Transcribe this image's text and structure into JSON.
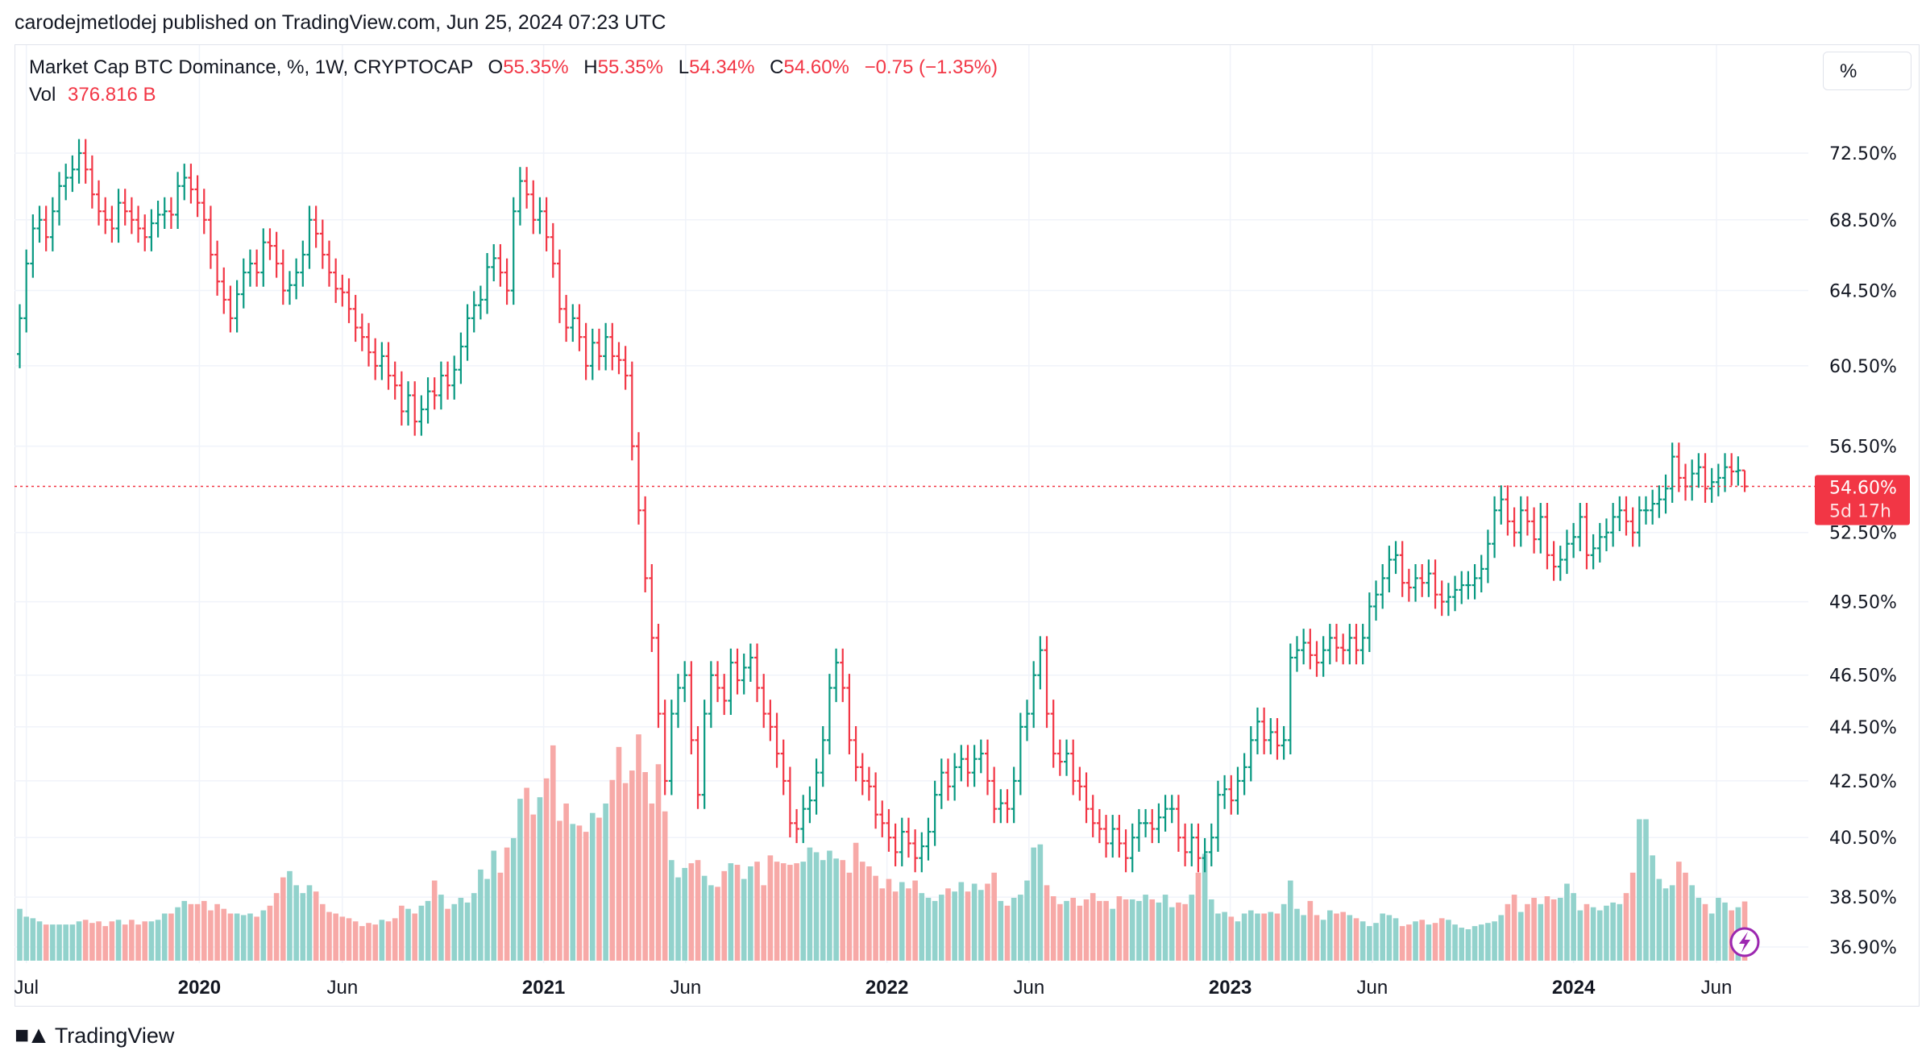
{
  "header": {
    "published": "carodejmetlodej published on TradingView.com, Jun 25, 2024 07:23 UTC"
  },
  "legend": {
    "symbol": "Market Cap BTC Dominance, %, 1W, CRYPTOCAP",
    "o_label": "O",
    "o": "55.35%",
    "h_label": "H",
    "h": "55.35%",
    "l_label": "L",
    "l": "54.34%",
    "c_label": "C",
    "c": "54.60%",
    "change": "−0.75 (−1.35%)",
    "vol_label": "Vol",
    "vol": "376.816 B"
  },
  "scale_button": "%",
  "price_label": {
    "value": "54.60%",
    "countdown": "5d 17h"
  },
  "footer": {
    "brand": "TradingView",
    "logo": "TV"
  },
  "colors": {
    "up": "#089981",
    "down": "#f23645",
    "vol_up": "#92d2cc",
    "vol_down": "#f7a9a7",
    "accent": "#9c27b0"
  },
  "icons": [
    "lightning-icon",
    "tradingview-logo"
  ],
  "chart_data": {
    "type": "ohlc",
    "scale": "log",
    "grid": true,
    "ylim": [
      36.9,
      72.5
    ],
    "y_ticks": [
      "72.50%",
      "68.50%",
      "64.50%",
      "60.50%",
      "56.50%",
      "52.50%",
      "49.50%",
      "46.50%",
      "44.50%",
      "42.50%",
      "40.50%",
      "38.50%",
      "36.90%"
    ],
    "y_tick_values": [
      72.5,
      68.5,
      64.5,
      60.5,
      56.5,
      52.5,
      49.5,
      46.5,
      44.5,
      42.5,
      40.5,
      38.5,
      36.9
    ],
    "x_ticks": [
      {
        "label": "Jul",
        "date": "2019-07-01"
      },
      {
        "label": "2020",
        "date": "2020-01-01",
        "bold": true
      },
      {
        "label": "Jun",
        "date": "2020-06-01"
      },
      {
        "label": "2021",
        "date": "2021-01-01",
        "bold": true
      },
      {
        "label": "Jun",
        "date": "2021-06-01"
      },
      {
        "label": "2022",
        "date": "2022-01-01",
        "bold": true
      },
      {
        "label": "Jun",
        "date": "2022-06-01"
      },
      {
        "label": "2023",
        "date": "2023-01-01",
        "bold": true
      },
      {
        "label": "Jun",
        "date": "2023-06-01"
      },
      {
        "label": "2024",
        "date": "2024-01-01",
        "bold": true
      },
      {
        "label": "Jun",
        "date": "2024-06-01"
      }
    ],
    "first_bar": "2019-06-24",
    "last_bar": {
      "date": "2024-06-24",
      "open": 55.35,
      "high": 55.35,
      "low": 54.34,
      "close": 54.6
    },
    "current_price": 54.6,
    "close": [
      63,
      66,
      68,
      68.5,
      67.5,
      69,
      70.5,
      71,
      71.5,
      72.5,
      71.5,
      70,
      69,
      68.5,
      68,
      69.5,
      69,
      68.5,
      68,
      67.5,
      68.3,
      68.8,
      69,
      68.8,
      70.5,
      71,
      70.3,
      69.5,
      68.5,
      66.5,
      65,
      64,
      63,
      64.3,
      65.5,
      66,
      65.5,
      67.2,
      67,
      66,
      64.5,
      64.8,
      65.5,
      66.5,
      68.5,
      67.7,
      66.5,
      65.5,
      64.6,
      64.4,
      63.5,
      62.5,
      62,
      61.2,
      60.5,
      61,
      60,
      59.5,
      58.2,
      59,
      57.7,
      58.3,
      59.2,
      59,
      60,
      59.5,
      60.3,
      61.5,
      63,
      63.7,
      64,
      65.8,
      66.3,
      65.5,
      64.5,
      69,
      70.8,
      70,
      68.5,
      69,
      67.5,
      66,
      63.5,
      62.5,
      63,
      62,
      60.5,
      61.7,
      61,
      62,
      61,
      60.8,
      60,
      56.5,
      53.5,
      50.5,
      48,
      45,
      42.5,
      45,
      46,
      46.5,
      44,
      42,
      45,
      46.5,
      46,
      45.5,
      47,
      46.3,
      46.8,
      47.2,
      46,
      45,
      44.5,
      43.5,
      42.5,
      41,
      40.8,
      41.5,
      41.8,
      42.8,
      44,
      46,
      47,
      46,
      44,
      43,
      42.5,
      42.3,
      41.3,
      41,
      40.5,
      40,
      40.7,
      40.3,
      39.8,
      40.2,
      40.7,
      42,
      42.8,
      42.3,
      43,
      43.3,
      42.8,
      43.3,
      43.5,
      42.5,
      41.5,
      41.7,
      41.5,
      42.5,
      44.5,
      45,
      46.5,
      47.5,
      45,
      43.5,
      43.2,
      43.5,
      42.5,
      42.3,
      41.5,
      41,
      40.8,
      40.3,
      40.8,
      40.3,
      39.8,
      40.5,
      41,
      41,
      40.8,
      41.2,
      41.5,
      41.5,
      40.5,
      40,
      40.5,
      39.8,
      40,
      40.5,
      42,
      42.2,
      41.8,
      42.5,
      43,
      44,
      44.7,
      44,
      44.3,
      43.8,
      44,
      47.2,
      47.5,
      47.8,
      47.3,
      47,
      47.5,
      48,
      47.6,
      47.5,
      48,
      47.5,
      48,
      49.3,
      49.8,
      50.5,
      51.3,
      51.5,
      50.3,
      50.1,
      50.5,
      50.3,
      50.7,
      49.8,
      49.5,
      49.7,
      50,
      50.2,
      50.2,
      50.5,
      50.9,
      52,
      53.5,
      54,
      53,
      52.5,
      53.5,
      53,
      52.2,
      53.2,
      51.5,
      51,
      51.3,
      52,
      52.3,
      53.2,
      51.5,
      51.8,
      52.3,
      52.5,
      53.2,
      53.5,
      53,
      52.5,
      53.5,
      53.5,
      53.8,
      54,
      54.5,
      56,
      55,
      54.6,
      55.2,
      55.5,
      54.5,
      54.8,
      55,
      55.5,
      55.3,
      55.35,
      54.6
    ],
    "volume_b": [
      330,
      280,
      270,
      250,
      230,
      230,
      230,
      230,
      230,
      250,
      260,
      240,
      250,
      220,
      250,
      260,
      230,
      260,
      230,
      250,
      250,
      260,
      300,
      300,
      340,
      380,
      360,
      360,
      380,
      320,
      360,
      330,
      300,
      300,
      290,
      300,
      280,
      320,
      350,
      430,
      530,
      570,
      480,
      430,
      480,
      440,
      360,
      310,
      300,
      280,
      270,
      250,
      220,
      240,
      230,
      260,
      250,
      270,
      350,
      330,
      300,
      350,
      380,
      510,
      420,
      330,
      360,
      400,
      370,
      430,
      580,
      520,
      700,
      560,
      720,
      780,
      1030,
      1100,
      930,
      1040,
      1160,
      1370,
      890,
      1000,
      870,
      860,
      820,
      940,
      910,
      1000,
      1150,
      1360,
      1130,
      1210,
      1440,
      1200,
      1000,
      1250,
      950,
      640,
      530,
      590,
      620,
      640,
      540,
      480,
      470,
      570,
      620,
      610,
      520,
      600,
      630,
      480,
      670,
      630,
      620,
      610,
      620,
      630,
      720,
      690,
      640,
      700,
      650,
      640,
      560,
      750,
      630,
      600,
      540,
      460,
      520,
      440,
      500,
      460,
      510,
      430,
      400,
      380,
      420,
      460,
      440,
      500,
      440,
      490,
      450,
      490,
      560,
      380,
      350,
      400,
      420,
      510,
      720,
      740,
      480,
      410,
      360,
      380,
      400,
      350,
      390,
      430,
      380,
      380,
      330,
      410,
      390,
      390,
      380,
      420,
      390,
      370,
      420,
      340,
      370,
      360,
      420,
      560,
      680,
      390,
      300,
      310,
      280,
      250,
      300,
      320,
      300,
      300,
      310,
      300,
      360,
      510,
      330,
      290,
      380,
      290,
      260,
      320,
      300,
      310,
      290,
      270,
      250,
      220,
      240,
      300,
      290,
      270,
      220,
      230,
      250,
      260,
      230,
      240,
      270,
      260,
      230,
      210,
      200,
      220,
      230,
      240,
      250,
      290,
      360,
      420,
      310,
      360,
      400,
      360,
      410,
      390,
      400,
      490,
      430,
      320,
      360,
      340,
      320,
      350,
      370,
      360,
      430,
      560,
      900,
      900,
      670,
      520,
      460,
      480,
      630,
      560,
      480,
      400,
      360,
      300,
      400,
      370,
      320,
      340,
      376.816
    ]
  }
}
